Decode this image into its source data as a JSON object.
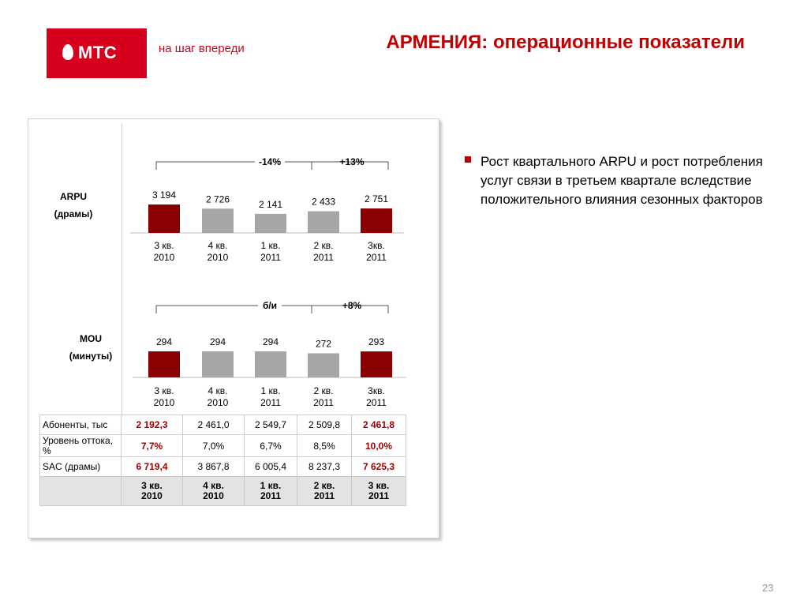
{
  "header": {
    "logo_text": "МТС",
    "slogan": "на шаг впереди",
    "title": "АРМЕНИЯ: операционные показатели"
  },
  "colors": {
    "brand_red": "#d6001c",
    "highlight": "#8b0000",
    "bar_gray": "#a6a6a6"
  },
  "chart_data": [
    {
      "type": "bar",
      "title": "ARPU (драмы)",
      "label_line1": "ARPU",
      "label_line2": "(драмы)",
      "categories": [
        "3 кв. 2010",
        "4 кв. 2010",
        "1 кв. 2011",
        "2 кв. 2011",
        "3кв. 2011"
      ],
      "cat_lines": [
        [
          "3 кв.",
          "2010"
        ],
        [
          "4 кв.",
          "2010"
        ],
        [
          "1 кв.",
          "2011"
        ],
        [
          "2 кв.",
          "2011"
        ],
        [
          "3кв.",
          "2011"
        ]
      ],
      "values": [
        3194,
        2726,
        2141,
        2433,
        2751
      ],
      "value_labels": [
        "3 194",
        "2 726",
        "2 141",
        "2 433",
        "2 751"
      ],
      "highlight": [
        true,
        false,
        false,
        false,
        true
      ],
      "annotations": [
        {
          "text": "-14%",
          "from": 0,
          "to": 4
        },
        {
          "text": "+13%",
          "from": 3,
          "to": 4
        }
      ]
    },
    {
      "type": "bar",
      "title": "MOU (минуты)",
      "label_line1": "MOU",
      "label_line2": "(минуты)",
      "categories": [
        "3 кв. 2010",
        "4 кв. 2010",
        "1 кв. 2011",
        "2 кв. 2011",
        "3кв. 2011"
      ],
      "cat_lines": [
        [
          "3 кв.",
          "2010"
        ],
        [
          "4 кв.",
          "2010"
        ],
        [
          "1 кв.",
          "2011"
        ],
        [
          "2 кв.",
          "2011"
        ],
        [
          "3кв.",
          "2011"
        ]
      ],
      "values": [
        294,
        294,
        294,
        272,
        293
      ],
      "value_labels": [
        "294",
        "294",
        "294",
        "272",
        "293"
      ],
      "highlight": [
        true,
        false,
        false,
        false,
        true
      ],
      "annotations": [
        {
          "text": "б/и",
          "from": 0,
          "to": 4
        },
        {
          "text": "+8%",
          "from": 3,
          "to": 4
        }
      ]
    },
    {
      "type": "table",
      "rows": [
        {
          "label": "Абоненты, тыс",
          "values": [
            "2 192,3",
            "2 461,0",
            "2 549,7",
            "2 509,8",
            "2 461,8"
          ]
        },
        {
          "label": "Уровень оттока, %",
          "values": [
            "7,7%",
            "7,0%",
            "6,7%",
            "8,5%",
            "10,0%"
          ]
        },
        {
          "label": "SAC (драмы)",
          "values": [
            "6 719,4",
            "3 867,8",
            "6 005,4",
            "8 237,3",
            "7 625,3"
          ]
        }
      ],
      "columns": [
        "3 кв. 2010",
        "4 кв. 2010",
        "1 кв. 2011",
        "2 кв. 2011",
        "3 кв. 2011"
      ],
      "column_lines": [
        [
          "3 кв.",
          "2010"
        ],
        [
          "4 кв.",
          "2010"
        ],
        [
          "1 кв.",
          "2011"
        ],
        [
          "2 кв.",
          "2011"
        ],
        [
          "3 кв.",
          "2011"
        ]
      ],
      "highlight_columns": [
        0,
        4
      ]
    }
  ],
  "bullets": [
    "Рост квартального ARPU и рост потребления услуг связи в третьем квартале вследствие положительного влияния сезонных факторов"
  ],
  "page_number": "23"
}
